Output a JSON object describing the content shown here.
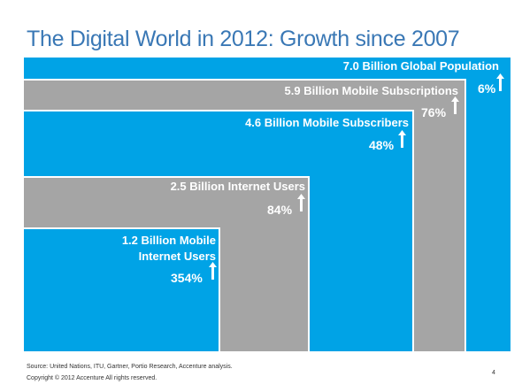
{
  "title": "The Digital World in 2012: Growth since 2007",
  "colors": {
    "blue": "#00a3e6",
    "gray": "#a5a5a5",
    "title": "#3a78b5"
  },
  "levels": [
    {
      "label": "7.0 Billion Global Population",
      "growth": "6%"
    },
    {
      "label": "5.9 Billion Mobile Subscriptions",
      "growth": "76%"
    },
    {
      "label": "4.6 Billion Mobile Subscribers",
      "growth": "48%"
    },
    {
      "label": "2.5 Billion Internet Users",
      "growth": "84%"
    },
    {
      "label_line1": "1.2 Billion Mobile",
      "label_line2": "Internet Users",
      "growth": "354%"
    }
  ],
  "footer": {
    "source": "Source: United Nations, ITU, Gartner, Portio Research, Accenture analysis.",
    "copyright": "Copyright © 2012 Accenture  All rights reserved.",
    "page": "4"
  }
}
